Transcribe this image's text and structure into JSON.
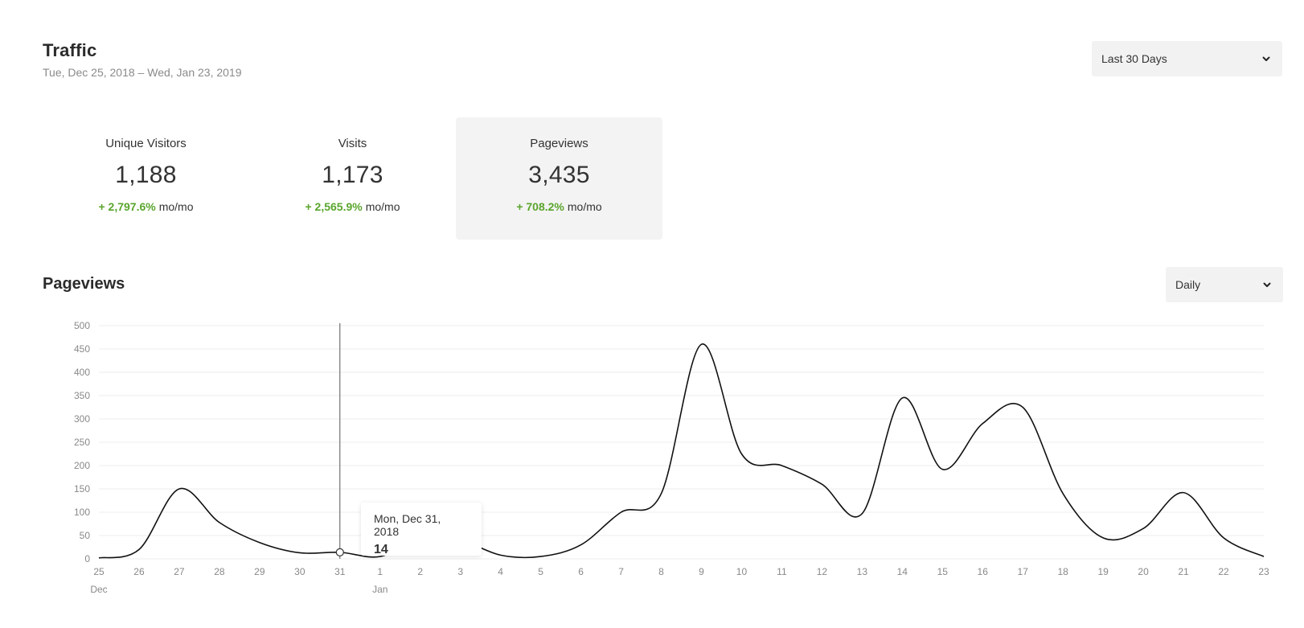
{
  "header": {
    "title": "Traffic",
    "date_range": "Tue, Dec 25, 2018 – Wed, Jan 23, 2019"
  },
  "range_select": {
    "value": "Last 30 Days"
  },
  "interval_select": {
    "value": "Daily"
  },
  "stats": [
    {
      "label": "Unique Visitors",
      "value": "1,188",
      "change": "+ 2,797.6%",
      "suffix": "mo/mo",
      "active": false
    },
    {
      "label": "Visits",
      "value": "1,173",
      "change": "+ 2,565.9%",
      "suffix": "mo/mo",
      "active": false
    },
    {
      "label": "Pageviews",
      "value": "3,435",
      "change": "+ 708.2%",
      "suffix": "mo/mo",
      "active": true
    }
  ],
  "colors": {
    "positive": "#5aa52c",
    "line": "#111111",
    "grid": "#eeeeee",
    "active_card": "#f3f3f3"
  },
  "icons": {
    "dropdown": "chevron-down-icon"
  },
  "chart_title": "Pageviews",
  "tooltip": {
    "date": "Mon, Dec 31, 2018",
    "value": "14"
  },
  "chart_data": {
    "type": "line",
    "title": "Pageviews",
    "x": [
      "25",
      "26",
      "27",
      "28",
      "29",
      "30",
      "31",
      "1",
      "2",
      "3",
      "4",
      "5",
      "6",
      "7",
      "8",
      "9",
      "10",
      "11",
      "12",
      "13",
      "14",
      "15",
      "16",
      "17",
      "18",
      "19",
      "20",
      "21",
      "22",
      "23"
    ],
    "month_labels": [
      {
        "at": "25",
        "label": "Dec"
      },
      {
        "at": "1",
        "label": "Jan"
      }
    ],
    "series": [
      {
        "values": [
          2,
          20,
          150,
          78,
          35,
          13,
          14,
          5,
          45,
          40,
          8,
          5,
          30,
          100,
          140,
          460,
          225,
          200,
          160,
          97,
          345,
          192,
          290,
          325,
          140,
          45,
          65,
          142,
          45,
          5
        ]
      }
    ],
    "yticks": [
      0,
      50,
      100,
      150,
      200,
      250,
      300,
      350,
      400,
      450,
      500
    ],
    "ylim": [
      0,
      500
    ],
    "grid": true,
    "highlight_index": 6
  }
}
